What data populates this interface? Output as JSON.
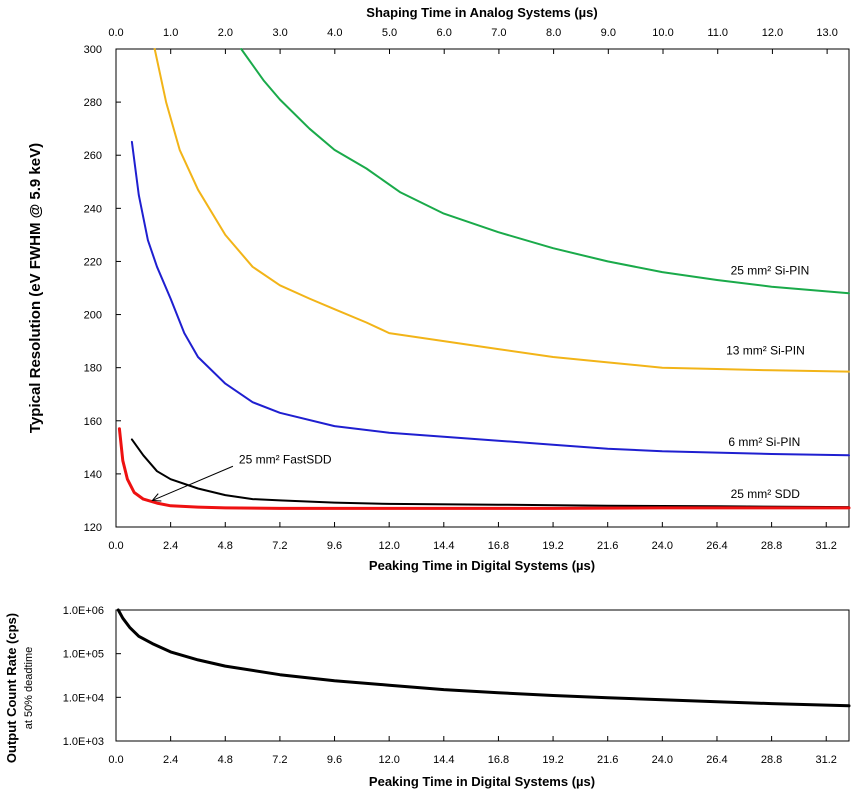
{
  "chart_data": [
    {
      "type": "line",
      "top_xlabel": "Shaping Time in Analog Systems (µs)",
      "top_x_ticks": [
        "0.0",
        "1.0",
        "2.0",
        "3.0",
        "4.0",
        "5.0",
        "6.0",
        "7.0",
        "8.0",
        "9.0",
        "10.0",
        "11.0",
        "12.0",
        "13.0"
      ],
      "top_x_range": [
        0,
        13.4
      ],
      "xlabel": "Peaking Time in Digital Systems (µs)",
      "x_ticks": [
        "0.0",
        "2.4",
        "4.8",
        "7.2",
        "9.6",
        "12.0",
        "14.4",
        "16.8",
        "19.2",
        "21.6",
        "24.0",
        "26.4",
        "28.8",
        "31.2"
      ],
      "xlim": [
        0,
        32.2
      ],
      "ylabel": "Typical Resolution (eV FWHM @ 5.9 keV)",
      "y_ticks": [
        "120",
        "140",
        "160",
        "180",
        "200",
        "220",
        "240",
        "260",
        "280",
        "300"
      ],
      "ylim": [
        120,
        300
      ],
      "grid": false,
      "series": [
        {
          "name": "25 mm² Si-PIN",
          "color": "#1aaa4a",
          "points": [
            [
              5.5,
              300
            ],
            [
              6.5,
              288
            ],
            [
              7.2,
              281
            ],
            [
              8.5,
              270
            ],
            [
              9.6,
              262
            ],
            [
              11,
              255
            ],
            [
              12.5,
              246
            ],
            [
              14.4,
              238
            ],
            [
              16.8,
              231
            ],
            [
              19.2,
              225
            ],
            [
              21.6,
              220
            ],
            [
              24,
              216
            ],
            [
              26.4,
              213
            ],
            [
              28.8,
              210.5
            ],
            [
              32.2,
              208
            ]
          ]
        },
        {
          "name": "13 mm² Si-PIN",
          "color": "#f2b418",
          "points": [
            [
              1.7,
              300
            ],
            [
              2.2,
              280
            ],
            [
              2.8,
              262
            ],
            [
              3.6,
              247
            ],
            [
              4.8,
              230
            ],
            [
              6,
              218
            ],
            [
              7.2,
              211
            ],
            [
              8.5,
              206
            ],
            [
              9.6,
              202
            ],
            [
              11,
              197
            ],
            [
              12,
              193
            ],
            [
              14.4,
              190
            ],
            [
              16.8,
              187
            ],
            [
              19.2,
              184
            ],
            [
              21.6,
              182
            ],
            [
              24,
              180
            ],
            [
              26.4,
              179.5
            ],
            [
              28.8,
              179
            ],
            [
              32.2,
              178.5
            ]
          ]
        },
        {
          "name": "6 mm² Si-PIN",
          "color": "#1f1fd0",
          "points": [
            [
              0.7,
              265
            ],
            [
              1,
              245
            ],
            [
              1.4,
              228
            ],
            [
              1.8,
              218
            ],
            [
              2.4,
              206
            ],
            [
              3,
              193
            ],
            [
              3.6,
              184
            ],
            [
              4.8,
              174
            ],
            [
              6,
              167
            ],
            [
              7.2,
              163
            ],
            [
              9.6,
              158
            ],
            [
              12,
              155.5
            ],
            [
              14.4,
              154
            ],
            [
              16.8,
              152.5
            ],
            [
              19.2,
              151
            ],
            [
              21.6,
              149.5
            ],
            [
              24,
              148.5
            ],
            [
              26.4,
              148
            ],
            [
              28.8,
              147.5
            ],
            [
              32.2,
              147
            ]
          ]
        },
        {
          "name": "25 mm² SDD",
          "color": "#000000",
          "points": [
            [
              0.7,
              153
            ],
            [
              1.2,
              147
            ],
            [
              1.8,
              141
            ],
            [
              2.4,
              138
            ],
            [
              3.6,
              134.5
            ],
            [
              4.8,
              132
            ],
            [
              6,
              130.5
            ],
            [
              7.2,
              130
            ],
            [
              9.6,
              129.2
            ],
            [
              12,
              128.7
            ],
            [
              16.8,
              128.4
            ],
            [
              21.6,
              128
            ],
            [
              26.4,
              127.8
            ],
            [
              32.2,
              127.5
            ]
          ]
        },
        {
          "name": "25 mm² FastSDD",
          "color": "#ee1111",
          "points": [
            [
              0.15,
              157
            ],
            [
              0.3,
              145
            ],
            [
              0.5,
              138
            ],
            [
              0.8,
              133
            ],
            [
              1.2,
              130.5
            ],
            [
              1.8,
              129
            ],
            [
              2.4,
              128
            ],
            [
              3.6,
              127.5
            ],
            [
              4.8,
              127.2
            ],
            [
              7.2,
              127
            ],
            [
              12,
              127
            ],
            [
              19.2,
              127
            ],
            [
              24,
              127.2
            ],
            [
              32.2,
              127.2
            ]
          ]
        }
      ],
      "annotations": [
        {
          "text": "25 mm² Si-PIN",
          "series": "25 mm² Si-PIN",
          "anchor": [
            27.0,
            215
          ]
        },
        {
          "text": "13 mm² Si-PIN",
          "series": "13 mm² Si-PIN",
          "anchor": [
            26.8,
            185
          ]
        },
        {
          "text": "6 mm² Si-PIN",
          "series": "6 mm² Si-PIN",
          "anchor": [
            26.9,
            150.5
          ]
        },
        {
          "text": "25 mm² SDD",
          "series": "25 mm² SDD",
          "anchor": [
            27.0,
            131
          ]
        },
        {
          "text": "25 mm² FastSDD",
          "series": "25 mm² FastSDD",
          "anchor": [
            5.4,
            144
          ],
          "arrow_to": [
            1.6,
            130
          ]
        }
      ]
    },
    {
      "type": "line",
      "xlabel": "Peaking Time in Digital Systems (µs)",
      "x_ticks": [
        "0.0",
        "2.4",
        "4.8",
        "7.2",
        "9.6",
        "12.0",
        "14.4",
        "16.8",
        "19.2",
        "21.6",
        "24.0",
        "26.4",
        "28.8",
        "31.2"
      ],
      "xlim": [
        0,
        32.2
      ],
      "ylabel": "Output Count Rate (cps)",
      "ylabel_sub": "at 50% deadtime",
      "yscale": "log",
      "y_ticks": [
        "1.0E+03",
        "1.0E+04",
        "1.0E+05",
        "1.0E+06"
      ],
      "ylim": [
        1000,
        1000000
      ],
      "grid": false,
      "series": [
        {
          "name": "",
          "color": "#000000",
          "points": [
            [
              0.1,
              1000000
            ],
            [
              0.3,
              650000
            ],
            [
              0.6,
              400000
            ],
            [
              1,
              250000
            ],
            [
              1.6,
              170000
            ],
            [
              2.4,
              110000
            ],
            [
              3.6,
              72000
            ],
            [
              4.8,
              52000
            ],
            [
              7.2,
              33000
            ],
            [
              9.6,
              24000
            ],
            [
              12,
              19000
            ],
            [
              14.4,
              15000
            ],
            [
              16.8,
              12800
            ],
            [
              19.2,
              11000
            ],
            [
              21.6,
              9800
            ],
            [
              24,
              8800
            ],
            [
              26.4,
              7900
            ],
            [
              28.8,
              7200
            ],
            [
              32.2,
              6400
            ]
          ]
        }
      ]
    }
  ]
}
